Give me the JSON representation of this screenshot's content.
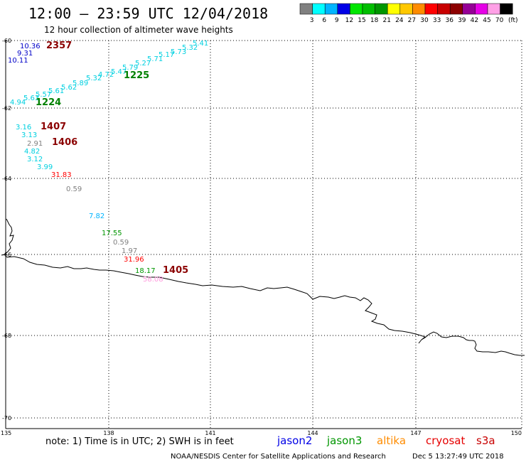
{
  "header": {
    "title": "12:00 – 23:59 UTC 12/04/2018",
    "subtitle": "12 hour collection of altimeter wave heights"
  },
  "colorbar": {
    "unit": "(ft)",
    "swatches": [
      {
        "color": "#808080",
        "label": "3"
      },
      {
        "color": "#00ffff",
        "label": "6"
      },
      {
        "color": "#00b4ff",
        "label": "9"
      },
      {
        "color": "#0000e6",
        "label": "12"
      },
      {
        "color": "#00e600",
        "label": "15"
      },
      {
        "color": "#00be00",
        "label": "18"
      },
      {
        "color": "#009600",
        "label": "21"
      },
      {
        "color": "#ffff00",
        "label": "24"
      },
      {
        "color": "#ffc800",
        "label": "27"
      },
      {
        "color": "#ff8c00",
        "label": "30"
      },
      {
        "color": "#ff0000",
        "label": "33"
      },
      {
        "color": "#c80000",
        "label": "36"
      },
      {
        "color": "#8c0000",
        "label": "39"
      },
      {
        "color": "#960096",
        "label": "42"
      },
      {
        "color": "#e600e6",
        "label": "45"
      },
      {
        "color": "#ffa0e6",
        "label": "70"
      },
      {
        "color": "#000000",
        "label": ""
      }
    ]
  },
  "axes": {
    "lat_labels": [
      "-60",
      "-62",
      "-64",
      "-66",
      "-68",
      "-70"
    ],
    "lon_labels": [
      "135",
      "138",
      "141",
      "144",
      "147",
      "150"
    ]
  },
  "observations": [
    {
      "text": "10.36",
      "color": "#0000c8"
    },
    {
      "text": "9.31",
      "color": "#0000c8"
    },
    {
      "text": "10.11",
      "color": "#0000c8"
    },
    {
      "text": "2357",
      "color": "#8b0000",
      "bold": true
    },
    {
      "text": "5.41",
      "color": "#00d0e0"
    },
    {
      "text": "5.32",
      "color": "#00d0e0"
    },
    {
      "text": "5.73",
      "color": "#00d0e0"
    },
    {
      "text": "5.17",
      "color": "#00d0e0"
    },
    {
      "text": "5.71",
      "color": "#00d0e0"
    },
    {
      "text": "5.27",
      "color": "#00d0e0"
    },
    {
      "text": "5.79",
      "color": "#00d0e0"
    },
    {
      "text": "5.47",
      "color": "#00d0e0"
    },
    {
      "text": "4.72",
      "color": "#00d0e0"
    },
    {
      "text": "5.32",
      "color": "#00d0e0"
    },
    {
      "text": "5.89",
      "color": "#00d0e0"
    },
    {
      "text": "5.62",
      "color": "#00d0e0"
    },
    {
      "text": "5.61",
      "color": "#00d0e0"
    },
    {
      "text": "5.57",
      "color": "#00d0e0"
    },
    {
      "text": "5.63",
      "color": "#00d0e0"
    },
    {
      "text": "4.94",
      "color": "#00d0e0"
    },
    {
      "text": "1225",
      "color": "#008000",
      "bold": true
    },
    {
      "text": "1224",
      "color": "#008000",
      "bold": true
    },
    {
      "text": "3.16",
      "color": "#00d0e0"
    },
    {
      "text": "1407",
      "color": "#8b0000",
      "bold": true
    },
    {
      "text": "3.13",
      "color": "#00d0e0"
    },
    {
      "text": "2.91",
      "color": "#808080"
    },
    {
      "text": "1406",
      "color": "#8b0000",
      "bold": true
    },
    {
      "text": "4.82",
      "color": "#00d0e0"
    },
    {
      "text": "3.12",
      "color": "#00d0e0"
    },
    {
      "text": "3.99",
      "color": "#00d0e0"
    },
    {
      "text": "31.83",
      "color": "#ff0000"
    },
    {
      "text": "0.59",
      "color": "#808080"
    },
    {
      "text": "7.82",
      "color": "#00b4ff"
    },
    {
      "text": "17.55",
      "color": "#009600"
    },
    {
      "text": "0.59",
      "color": "#808080"
    },
    {
      "text": "1.97",
      "color": "#808080"
    },
    {
      "text": "31.96",
      "color": "#ff0000"
    },
    {
      "text": "18.17",
      "color": "#009600"
    },
    {
      "text": "1405",
      "color": "#8b0000",
      "bold": true
    },
    {
      "text": "58.08",
      "color": "#ff99dd"
    }
  ],
  "footer": {
    "note": "note: 1) Time is in UTC; 2) SWH is in feet",
    "missions": [
      {
        "name": "jason2",
        "color": "#0000e6"
      },
      {
        "name": "jason3",
        "color": "#009600"
      },
      {
        "name": "altika",
        "color": "#ff8c00"
      },
      {
        "name": "cryosat",
        "color": "#e60000"
      },
      {
        "name": "s3a",
        "color": "#c80000"
      }
    ],
    "credit": "NOAA/NESDIS Center for Satellite Applications and Research",
    "timestamp": "Dec  5 13:27:49 UTC 2018"
  }
}
